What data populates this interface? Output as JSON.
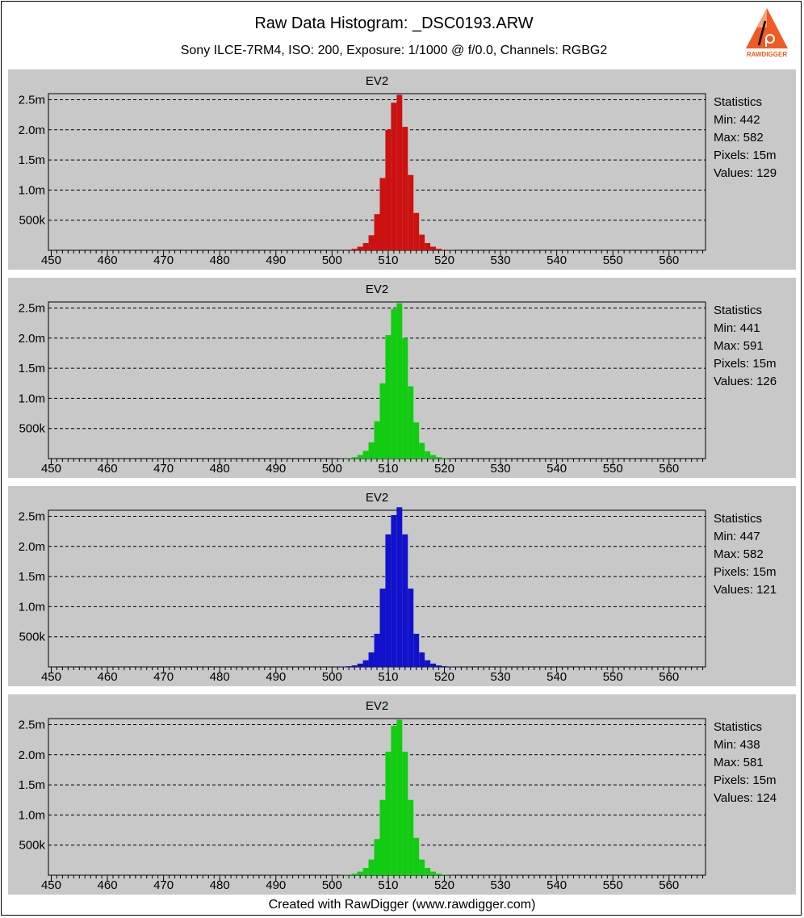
{
  "header": {
    "title": "Raw Data Histogram: _DSC0193.ARW",
    "subtitle": "Sony ILCE-7RM4, ISO: 200, Exposure: 1/1000 @ f/0.0, Channels: RGBG2",
    "logo_text": "RAWDIGGER"
  },
  "footer": "Created with RawDigger (www.rawdigger.com)",
  "colors": {
    "red": "#cc1111",
    "green": "#11cc11",
    "blue": "#1111cc",
    "panel": "#c8c8c8"
  },
  "chart_data": [
    {
      "type": "bar",
      "title": "EV2",
      "channel_color": "red",
      "x_ticks": [
        450,
        460,
        470,
        480,
        490,
        500,
        510,
        520,
        530,
        540,
        550,
        560
      ],
      "y_ticks": [
        500000,
        1000000,
        1500000,
        2000000,
        2500000
      ],
      "y_tick_labels": [
        "500k",
        "1.0m",
        "1.5m",
        "2.0m",
        "2.5m"
      ],
      "xlim": [
        449.5,
        566.5
      ],
      "ylim": [
        0,
        2600000
      ],
      "x": [
        502,
        503,
        504,
        505,
        506,
        507,
        508,
        509,
        510,
        511,
        512,
        513,
        514,
        515,
        516,
        517,
        518,
        519,
        520,
        521
      ],
      "values": [
        3000,
        10000,
        25000,
        60000,
        120000,
        250000,
        600000,
        1200000,
        2000000,
        2450000,
        2580000,
        2050000,
        1250000,
        620000,
        260000,
        120000,
        60000,
        25000,
        10000,
        3000
      ],
      "stats": {
        "heading": "Statistics",
        "min": "Min: 442",
        "max": "Max: 582",
        "pixels": "Pixels: 15m",
        "values": "Values: 129"
      }
    },
    {
      "type": "bar",
      "title": "EV2",
      "channel_color": "green",
      "x_ticks": [
        450,
        460,
        470,
        480,
        490,
        500,
        510,
        520,
        530,
        540,
        550,
        560
      ],
      "y_ticks": [
        500000,
        1000000,
        1500000,
        2000000,
        2500000
      ],
      "y_tick_labels": [
        "500k",
        "1.0m",
        "1.5m",
        "2.0m",
        "2.5m"
      ],
      "xlim": [
        449.5,
        566.5
      ],
      "ylim": [
        0,
        2600000
      ],
      "x": [
        502,
        503,
        504,
        505,
        506,
        507,
        508,
        509,
        510,
        511,
        512,
        513,
        514,
        515,
        516,
        517,
        518,
        519,
        520,
        521
      ],
      "values": [
        3000,
        10000,
        25000,
        60000,
        130000,
        270000,
        620000,
        1250000,
        2050000,
        2480000,
        2580000,
        2000000,
        1200000,
        600000,
        260000,
        120000,
        60000,
        25000,
        10000,
        3000
      ],
      "stats": {
        "heading": "Statistics",
        "min": "Min: 441",
        "max": "Max: 591",
        "pixels": "Pixels: 15m",
        "values": "Values: 126"
      }
    },
    {
      "type": "bar",
      "title": "EV2",
      "channel_color": "blue",
      "x_ticks": [
        450,
        460,
        470,
        480,
        490,
        500,
        510,
        520,
        530,
        540,
        550,
        560
      ],
      "y_ticks": [
        500000,
        1000000,
        1500000,
        2000000,
        2500000
      ],
      "y_tick_labels": [
        "500k",
        "1.0m",
        "1.5m",
        "2.0m",
        "2.5m"
      ],
      "xlim": [
        449.5,
        566.5
      ],
      "ylim": [
        0,
        2600000
      ],
      "x": [
        501,
        502,
        503,
        504,
        505,
        506,
        507,
        508,
        509,
        510,
        511,
        512,
        513,
        514,
        515,
        516,
        517,
        518,
        519,
        520,
        521,
        522
      ],
      "values": [
        2000,
        5000,
        12000,
        25000,
        55000,
        110000,
        240000,
        550000,
        1300000,
        2200000,
        2520000,
        2650000,
        2200000,
        1300000,
        550000,
        240000,
        110000,
        55000,
        25000,
        12000,
        5000,
        2000
      ],
      "stats": {
        "heading": "Statistics",
        "min": "Min: 447",
        "max": "Max: 582",
        "pixels": "Pixels: 15m",
        "values": "Values: 121"
      }
    },
    {
      "type": "bar",
      "title": "EV2",
      "channel_color": "green",
      "x_ticks": [
        450,
        460,
        470,
        480,
        490,
        500,
        510,
        520,
        530,
        540,
        550,
        560
      ],
      "y_ticks": [
        500000,
        1000000,
        1500000,
        2000000,
        2500000
      ],
      "y_tick_labels": [
        "500k",
        "1.0m",
        "1.5m",
        "2.0m",
        "2.5m"
      ],
      "xlim": [
        449.5,
        566.5
      ],
      "ylim": [
        0,
        2600000
      ],
      "x": [
        502,
        503,
        504,
        505,
        506,
        507,
        508,
        509,
        510,
        511,
        512,
        513,
        514,
        515,
        516,
        517,
        518,
        519,
        520,
        521
      ],
      "values": [
        3000,
        10000,
        25000,
        60000,
        120000,
        260000,
        600000,
        1250000,
        2050000,
        2480000,
        2580000,
        2050000,
        1250000,
        620000,
        260000,
        120000,
        60000,
        25000,
        10000,
        3000
      ],
      "stats": {
        "heading": "Statistics",
        "min": "Min: 438",
        "max": "Max: 581",
        "pixels": "Pixels: 15m",
        "values": "Values: 124"
      }
    }
  ]
}
